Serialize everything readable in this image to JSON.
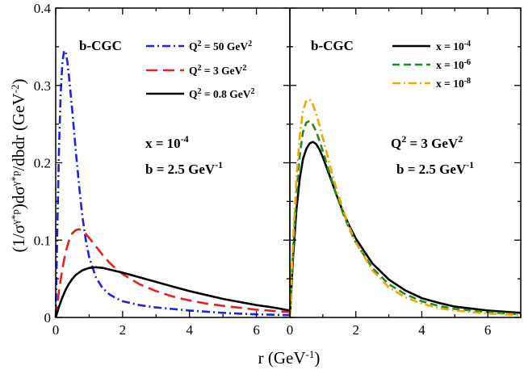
{
  "chart_data": [
    {
      "type": "line",
      "panel": "left",
      "model_label": "b-CGC",
      "ylabel": "(1/σ^{γ*p})dσ^{γ*p}/dbdr (GeV^{-2})",
      "ylabel_parts": {
        "prefix": "(1/σ",
        "sup1": "γ*p",
        "mid": ")dσ",
        "sup2": "γ*p",
        "suffix": "/dbdr (GeV",
        "sup3": "-2",
        "close": ")"
      },
      "xlim": [
        0,
        7
      ],
      "ylim": [
        0,
        0.4
      ],
      "xticks": [
        0,
        2,
        4,
        6
      ],
      "yticks": [
        0,
        0.1,
        0.2,
        0.3,
        0.4
      ],
      "annotations": [
        {
          "base": "x = 10",
          "sup": "-4"
        },
        {
          "base": "b = 2.5 GeV",
          "sup": "-1"
        }
      ],
      "legend_position": "top-right",
      "series": [
        {
          "name": "Q^2 = 50 GeV^2",
          "label": {
            "pre": "Q",
            "sup1": "2",
            "mid": " = 50 GeV",
            "sup2": "2"
          },
          "color": "#1f1fe6",
          "dash": "10,4,2,4",
          "x": [
            0,
            0.05,
            0.1,
            0.15,
            0.2,
            0.25,
            0.3,
            0.35,
            0.4,
            0.5,
            0.6,
            0.7,
            0.8,
            0.9,
            1.0,
            1.2,
            1.4,
            1.6,
            1.8,
            2.0,
            2.5,
            3.0,
            3.5,
            4.0,
            5.0,
            6.0,
            7.0
          ],
          "y": [
            0,
            0.12,
            0.22,
            0.29,
            0.33,
            0.345,
            0.343,
            0.33,
            0.31,
            0.265,
            0.215,
            0.17,
            0.13,
            0.1,
            0.078,
            0.052,
            0.038,
            0.03,
            0.025,
            0.021,
            0.016,
            0.013,
            0.011,
            0.009,
            0.006,
            0.004,
            0.003
          ]
        },
        {
          "name": "Q^2 = 3 GeV^2",
          "label": {
            "pre": "Q",
            "sup1": "2",
            "mid": " = 3 GeV",
            "sup2": "2"
          },
          "color": "#e61f1f",
          "dash": "14,7",
          "x": [
            0,
            0.1,
            0.2,
            0.3,
            0.4,
            0.5,
            0.6,
            0.7,
            0.8,
            0.9,
            1.0,
            1.2,
            1.4,
            1.6,
            1.8,
            2.0,
            2.5,
            3.0,
            3.5,
            4.0,
            4.5,
            5.0,
            6.0,
            7.0
          ],
          "y": [
            0,
            0.035,
            0.063,
            0.085,
            0.1,
            0.109,
            0.113,
            0.114,
            0.112,
            0.108,
            0.103,
            0.092,
            0.081,
            0.071,
            0.063,
            0.056,
            0.043,
            0.034,
            0.027,
            0.022,
            0.018,
            0.015,
            0.01,
            0.007
          ]
        },
        {
          "name": "Q^2 = 0.8 GeV^2",
          "label": {
            "pre": "Q",
            "sup1": "2",
            "mid": " = 0.8 GeV",
            "sup2": "2"
          },
          "color": "#000000",
          "dash": "",
          "x": [
            0,
            0.1,
            0.2,
            0.3,
            0.4,
            0.5,
            0.6,
            0.8,
            1.0,
            1.2,
            1.4,
            1.6,
            1.8,
            2.0,
            2.5,
            3.0,
            3.5,
            4.0,
            4.5,
            5.0,
            5.5,
            6.0,
            6.5,
            7.0
          ],
          "y": [
            0,
            0.014,
            0.026,
            0.036,
            0.044,
            0.05,
            0.055,
            0.061,
            0.064,
            0.065,
            0.064,
            0.062,
            0.06,
            0.058,
            0.052,
            0.046,
            0.04,
            0.034,
            0.029,
            0.024,
            0.02,
            0.016,
            0.013,
            0.009
          ]
        }
      ]
    },
    {
      "type": "line",
      "panel": "right",
      "model_label": "b-CGC",
      "xlim": [
        0,
        7
      ],
      "ylim": [
        0,
        0.4
      ],
      "xticks": [
        0,
        2,
        4,
        6
      ],
      "annotations": [
        {
          "base": "Q",
          "sup": "2",
          "after": " = 3 GeV",
          "sup2": "2"
        },
        {
          "base": "b = 2.5 GeV",
          "sup": "-1"
        }
      ],
      "legend_position": "top-right",
      "series": [
        {
          "name": "x = 10^-4",
          "label": {
            "pre": "x = 10",
            "sup1": "-4"
          },
          "color": "#000000",
          "dash": "",
          "x": [
            0,
            0.05,
            0.1,
            0.2,
            0.3,
            0.4,
            0.5,
            0.6,
            0.7,
            0.8,
            0.9,
            1.0,
            1.2,
            1.4,
            1.6,
            1.8,
            2.0,
            2.5,
            3.0,
            3.5,
            4.0,
            4.5,
            5.0,
            6.0,
            7.0
          ],
          "y": [
            0,
            0.04,
            0.08,
            0.14,
            0.18,
            0.205,
            0.218,
            0.225,
            0.227,
            0.224,
            0.217,
            0.207,
            0.184,
            0.16,
            0.138,
            0.119,
            0.102,
            0.07,
            0.049,
            0.035,
            0.025,
            0.019,
            0.014,
            0.009,
            0.006
          ]
        },
        {
          "name": "x = 10^-6",
          "label": {
            "pre": "x = 10",
            "sup1": "-6"
          },
          "color": "#1f8c1f",
          "dash": "9,5",
          "x": [
            0,
            0.05,
            0.1,
            0.2,
            0.3,
            0.4,
            0.5,
            0.6,
            0.7,
            0.8,
            0.9,
            1.0,
            1.2,
            1.4,
            1.6,
            1.8,
            2.0,
            2.5,
            3.0,
            3.5,
            4.0,
            4.5,
            5.0,
            6.0,
            7.0
          ],
          "y": [
            0,
            0.045,
            0.09,
            0.16,
            0.21,
            0.24,
            0.252,
            0.254,
            0.249,
            0.24,
            0.228,
            0.215,
            0.187,
            0.16,
            0.136,
            0.115,
            0.097,
            0.064,
            0.043,
            0.03,
            0.021,
            0.015,
            0.011,
            0.007,
            0.004
          ]
        },
        {
          "name": "x = 10^-8",
          "label": {
            "pre": "x = 10",
            "sup1": "-8"
          },
          "color": "#f0a800",
          "dash": "10,4,2,4",
          "x": [
            0,
            0.05,
            0.1,
            0.2,
            0.3,
            0.4,
            0.5,
            0.6,
            0.7,
            0.8,
            0.9,
            1.0,
            1.2,
            1.4,
            1.6,
            1.8,
            2.0,
            2.5,
            3.0,
            3.5,
            4.0,
            4.5,
            5.0,
            6.0,
            7.0
          ],
          "y": [
            0,
            0.05,
            0.1,
            0.18,
            0.235,
            0.268,
            0.28,
            0.282,
            0.275,
            0.263,
            0.248,
            0.232,
            0.199,
            0.168,
            0.141,
            0.117,
            0.097,
            0.061,
            0.039,
            0.026,
            0.018,
            0.012,
            0.009,
            0.005,
            0.003
          ]
        }
      ]
    }
  ],
  "xlabel": {
    "base": "r (GeV",
    "sup": "-1",
    "close": ")"
  }
}
